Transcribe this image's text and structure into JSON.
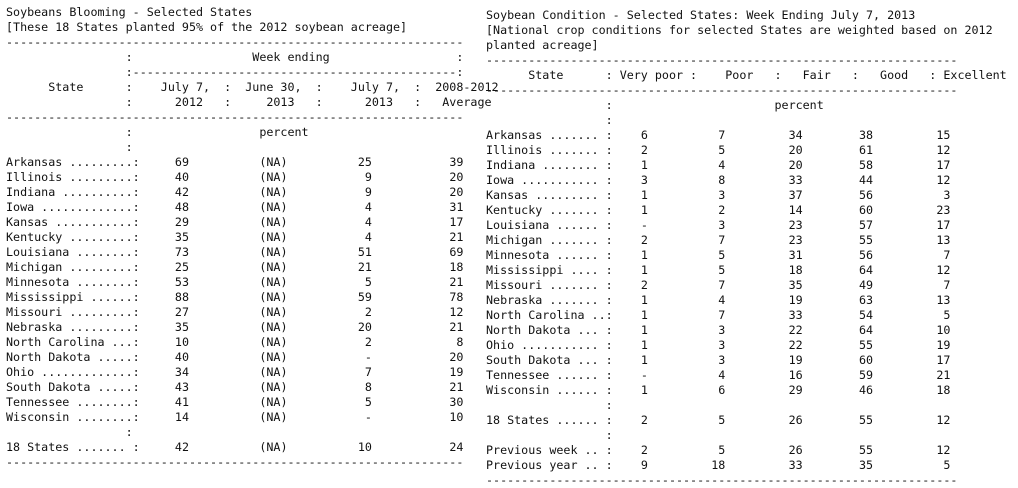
{
  "left": {
    "title": "Soybeans Blooming - Selected States",
    "note": "[These 18 States planted 95% of the 2012 soybean acreage]",
    "header_lines": [
      "-----------------------------------------------------------------",
      "                 :                 Week ending                  :",
      "                 :----------------------------------------------:",
      "      State      :    July 7,  :  June 30,  :    July 7,  :  2008-2012",
      "                 :      2012   :     2013   :      2013   :   Average",
      "-----------------------------------------------------------------",
      "                 :                  percent",
      "                 :"
    ],
    "rows": [
      {
        "state": "Arkansas .........",
        "values": [
          "69",
          "(NA)",
          "25",
          "39"
        ]
      },
      {
        "state": "Illinois .........",
        "values": [
          "40",
          "(NA)",
          "9",
          "20"
        ]
      },
      {
        "state": "Indiana ..........",
        "values": [
          "42",
          "(NA)",
          "9",
          "20"
        ]
      },
      {
        "state": "Iowa .............",
        "values": [
          "48",
          "(NA)",
          "4",
          "31"
        ]
      },
      {
        "state": "Kansas ...........",
        "values": [
          "29",
          "(NA)",
          "4",
          "17"
        ]
      },
      {
        "state": "Kentucky .........",
        "values": [
          "35",
          "(NA)",
          "4",
          "21"
        ]
      },
      {
        "state": "Louisiana ........",
        "values": [
          "73",
          "(NA)",
          "51",
          "69"
        ]
      },
      {
        "state": "Michigan .........",
        "values": [
          "25",
          "(NA)",
          "21",
          "18"
        ]
      },
      {
        "state": "Minnesota ........",
        "values": [
          "53",
          "(NA)",
          "5",
          "21"
        ]
      },
      {
        "state": "Mississippi ......",
        "values": [
          "88",
          "(NA)",
          "59",
          "78"
        ]
      },
      {
        "state": "Missouri .........",
        "values": [
          "27",
          "(NA)",
          "2",
          "12"
        ]
      },
      {
        "state": "Nebraska .........",
        "values": [
          "35",
          "(NA)",
          "20",
          "21"
        ]
      },
      {
        "state": "North Carolina ...",
        "values": [
          "10",
          "(NA)",
          "2",
          "8"
        ]
      },
      {
        "state": "North Dakota .....",
        "values": [
          "40",
          "(NA)",
          "-",
          "20"
        ]
      },
      {
        "state": "Ohio .............",
        "values": [
          "34",
          "(NA)",
          "7",
          "19"
        ]
      },
      {
        "state": "South Dakota .....",
        "values": [
          "43",
          "(NA)",
          "8",
          "21"
        ]
      },
      {
        "state": "Tennessee ........",
        "values": [
          "41",
          "(NA)",
          "5",
          "30"
        ]
      },
      {
        "state": "Wisconsin ........",
        "values": [
          "14",
          "(NA)",
          "-",
          "10"
        ]
      }
    ],
    "total": {
      "state": "18 States .......",
      "values": [
        "42",
        "(NA)",
        "10",
        "24"
      ]
    },
    "footer_rule": "-----------------------------------------------------------------"
  },
  "right": {
    "title": "Soybean Condition - Selected States: Week Ending July 7, 2013",
    "note_lines": [
      "[National crop conditions for selected States are weighted based on 2012",
      "planted acreage]"
    ],
    "header_lines": [
      "-------------------------------------------------------------------",
      "      State      : Very poor :    Poor   :   Fair   :   Good   : Excellent",
      "-------------------------------------------------------------------",
      "                 :                       percent",
      "                 :"
    ],
    "rows": [
      {
        "state": "Arkansas .......",
        "values": [
          "6",
          "7",
          "34",
          "38",
          "15"
        ]
      },
      {
        "state": "Illinois .......",
        "values": [
          "2",
          "5",
          "20",
          "61",
          "12"
        ]
      },
      {
        "state": "Indiana ........",
        "values": [
          "1",
          "4",
          "20",
          "58",
          "17"
        ]
      },
      {
        "state": "Iowa ...........",
        "values": [
          "3",
          "8",
          "33",
          "44",
          "12"
        ]
      },
      {
        "state": "Kansas .........",
        "values": [
          "1",
          "3",
          "37",
          "56",
          "3"
        ]
      },
      {
        "state": "Kentucky .......",
        "values": [
          "1",
          "2",
          "14",
          "60",
          "23"
        ]
      },
      {
        "state": "Louisiana ......",
        "values": [
          "-",
          "3",
          "23",
          "57",
          "17"
        ]
      },
      {
        "state": "Michigan .......",
        "values": [
          "2",
          "7",
          "23",
          "55",
          "13"
        ]
      },
      {
        "state": "Minnesota ......",
        "values": [
          "1",
          "5",
          "31",
          "56",
          "7"
        ]
      },
      {
        "state": "Mississippi ....",
        "values": [
          "1",
          "5",
          "18",
          "64",
          "12"
        ]
      },
      {
        "state": "Missouri .......",
        "values": [
          "2",
          "7",
          "35",
          "49",
          "7"
        ]
      },
      {
        "state": "Nebraska .......",
        "values": [
          "1",
          "4",
          "19",
          "63",
          "13"
        ]
      },
      {
        "state": "North Carolina ..",
        "values": [
          "1",
          "7",
          "33",
          "54",
          "5"
        ]
      },
      {
        "state": "North Dakota ...",
        "values": [
          "1",
          "3",
          "22",
          "64",
          "10"
        ]
      },
      {
        "state": "Ohio ...........",
        "values": [
          "1",
          "3",
          "22",
          "55",
          "19"
        ]
      },
      {
        "state": "South Dakota ...",
        "values": [
          "1",
          "3",
          "19",
          "60",
          "17"
        ]
      },
      {
        "state": "Tennessee ......",
        "values": [
          "-",
          "4",
          "16",
          "59",
          "21"
        ]
      },
      {
        "state": "Wisconsin ......",
        "values": [
          "1",
          "6",
          "29",
          "46",
          "18"
        ]
      }
    ],
    "summary": [
      {
        "state": "18 States ......",
        "values": [
          "2",
          "5",
          "26",
          "55",
          "12"
        ]
      },
      {
        "state": "Previous week ..",
        "values": [
          "2",
          "5",
          "26",
          "55",
          "12"
        ]
      },
      {
        "state": "Previous year ..",
        "values": [
          "9",
          "18",
          "33",
          "35",
          "5"
        ]
      }
    ],
    "footer_rule": "-------------------------------------------------------------------"
  }
}
